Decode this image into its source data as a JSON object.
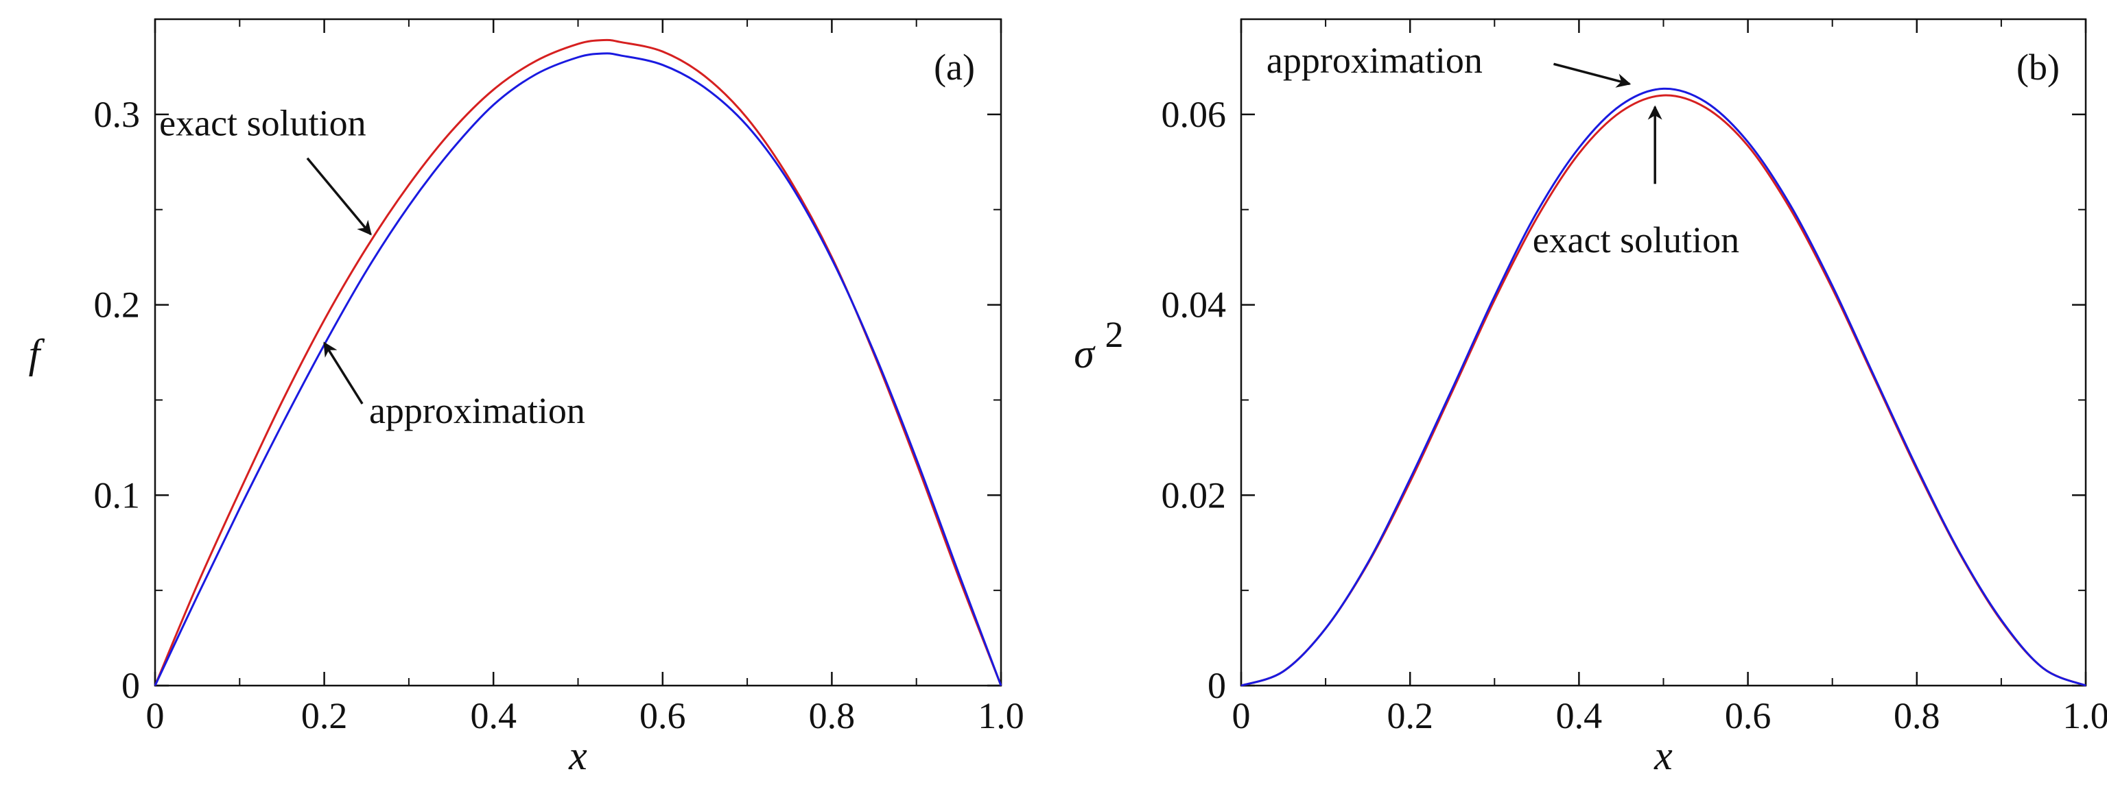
{
  "colors": {
    "exact": "#d62020",
    "approx": "#1a1ae0",
    "axes": "#111111",
    "arrow": "#111111"
  },
  "chart_data": [
    {
      "type": "line",
      "panel_label": "(a)",
      "xlabel": "x",
      "ylabel": "f",
      "ylabel_sup": "",
      "xlim": [
        0,
        1
      ],
      "ylim": [
        0,
        0.35
      ],
      "xticks": [
        0,
        0.2,
        0.4,
        0.6,
        0.8,
        1.0
      ],
      "xtick_labels": [
        "0",
        "0.2",
        "0.4",
        "0.6",
        "0.8",
        "1.0"
      ],
      "xminor": [
        0.1,
        0.3,
        0.5,
        0.7,
        0.9
      ],
      "yticks": [
        0,
        0.1,
        0.2,
        0.3
      ],
      "ytick_labels": [
        "0",
        "0.1",
        "0.2",
        "0.3"
      ],
      "yminor": [
        0.05,
        0.15,
        0.25
      ],
      "series": [
        {
          "name": "exact solution",
          "key": "exact",
          "x": [
            0,
            0.05,
            0.1,
            0.15,
            0.2,
            0.25,
            0.3,
            0.35,
            0.4,
            0.45,
            0.5,
            0.53,
            0.55,
            0.6,
            0.65,
            0.7,
            0.75,
            0.8,
            0.85,
            0.9,
            0.95,
            1.0
          ],
          "y": [
            0,
            0.053,
            0.102,
            0.149,
            0.192,
            0.23,
            0.263,
            0.291,
            0.313,
            0.328,
            0.337,
            0.339,
            0.338,
            0.333,
            0.32,
            0.298,
            0.266,
            0.225,
            0.174,
            0.117,
            0.057,
            0
          ]
        },
        {
          "name": "approximation",
          "key": "approx",
          "x": [
            0,
            0.05,
            0.1,
            0.15,
            0.2,
            0.25,
            0.3,
            0.35,
            0.4,
            0.45,
            0.5,
            0.53,
            0.55,
            0.6,
            0.65,
            0.7,
            0.75,
            0.8,
            0.85,
            0.9,
            0.95,
            1.0
          ],
          "y": [
            0,
            0.047,
            0.093,
            0.137,
            0.179,
            0.218,
            0.252,
            0.281,
            0.305,
            0.321,
            0.33,
            0.332,
            0.331,
            0.326,
            0.314,
            0.294,
            0.264,
            0.224,
            0.175,
            0.119,
            0.059,
            0
          ]
        }
      ],
      "annotations": [
        {
          "key": "ann_a_exact",
          "text": "exact solution",
          "series": "exact",
          "text_at": [
            0.005,
            0.289
          ],
          "arrow_from": [
            0.18,
            0.277
          ],
          "arrow_to": [
            0.255,
            0.237
          ]
        },
        {
          "key": "ann_a_approx",
          "text": "approximation",
          "series": "approx",
          "text_at": [
            0.253,
            0.138
          ],
          "arrow_from": [
            0.245,
            0.148
          ],
          "arrow_to": [
            0.2,
            0.18
          ]
        }
      ]
    },
    {
      "type": "line",
      "panel_label": "(b)",
      "xlabel": "x",
      "ylabel": "σ",
      "ylabel_sup": "2",
      "xlim": [
        0,
        1
      ],
      "ylim": [
        0,
        0.07
      ],
      "xticks": [
        0,
        0.2,
        0.4,
        0.6,
        0.8,
        1.0
      ],
      "xtick_labels": [
        "0",
        "0.2",
        "0.4",
        "0.6",
        "0.8",
        "1.0"
      ],
      "xminor": [
        0.1,
        0.3,
        0.5,
        0.7,
        0.9
      ],
      "yticks": [
        0,
        0.02,
        0.04,
        0.06
      ],
      "ytick_labels": [
        "0",
        "0.02",
        "0.04",
        "0.06"
      ],
      "yminor": [
        0.01,
        0.03,
        0.05
      ],
      "series": [
        {
          "name": "exact solution",
          "key": "exact",
          "x": [
            0,
            0.05,
            0.1,
            0.15,
            0.2,
            0.25,
            0.3,
            0.35,
            0.4,
            0.45,
            0.5,
            0.55,
            0.6,
            0.65,
            0.7,
            0.75,
            0.8,
            0.85,
            0.9,
            0.95,
            1.0
          ],
          "y": [
            0,
            0.0015,
            0.006,
            0.0128,
            0.0214,
            0.0309,
            0.0405,
            0.0491,
            0.0559,
            0.0603,
            0.062,
            0.0607,
            0.0567,
            0.0501,
            0.0417,
            0.0322,
            0.0227,
            0.014,
            0.0068,
            0.0018,
            0
          ]
        },
        {
          "name": "approximation",
          "key": "approx",
          "x": [
            0,
            0.05,
            0.1,
            0.15,
            0.2,
            0.25,
            0.3,
            0.35,
            0.4,
            0.45,
            0.5,
            0.55,
            0.6,
            0.65,
            0.7,
            0.75,
            0.8,
            0.85,
            0.9,
            0.95,
            1.0
          ],
          "y": [
            0,
            0.0015,
            0.006,
            0.0129,
            0.0217,
            0.0312,
            0.0409,
            0.0497,
            0.0565,
            0.061,
            0.0627,
            0.0613,
            0.0571,
            0.0505,
            0.042,
            0.0324,
            0.0229,
            0.0141,
            0.0069,
            0.0018,
            0
          ]
        }
      ],
      "annotations": [
        {
          "key": "ann_b_approx",
          "text": "approximation",
          "series": "approx",
          "text_at": [
            0.03,
            0.0644
          ],
          "arrow_from": [
            0.37,
            0.0653
          ],
          "arrow_to": [
            0.46,
            0.0632
          ]
        },
        {
          "key": "ann_b_exact",
          "text": "exact solution",
          "series": "exact",
          "text_at": [
            0.345,
            0.0455
          ],
          "arrow_from": [
            0.49,
            0.0527
          ],
          "arrow_to": [
            0.49,
            0.0608
          ]
        }
      ]
    }
  ]
}
